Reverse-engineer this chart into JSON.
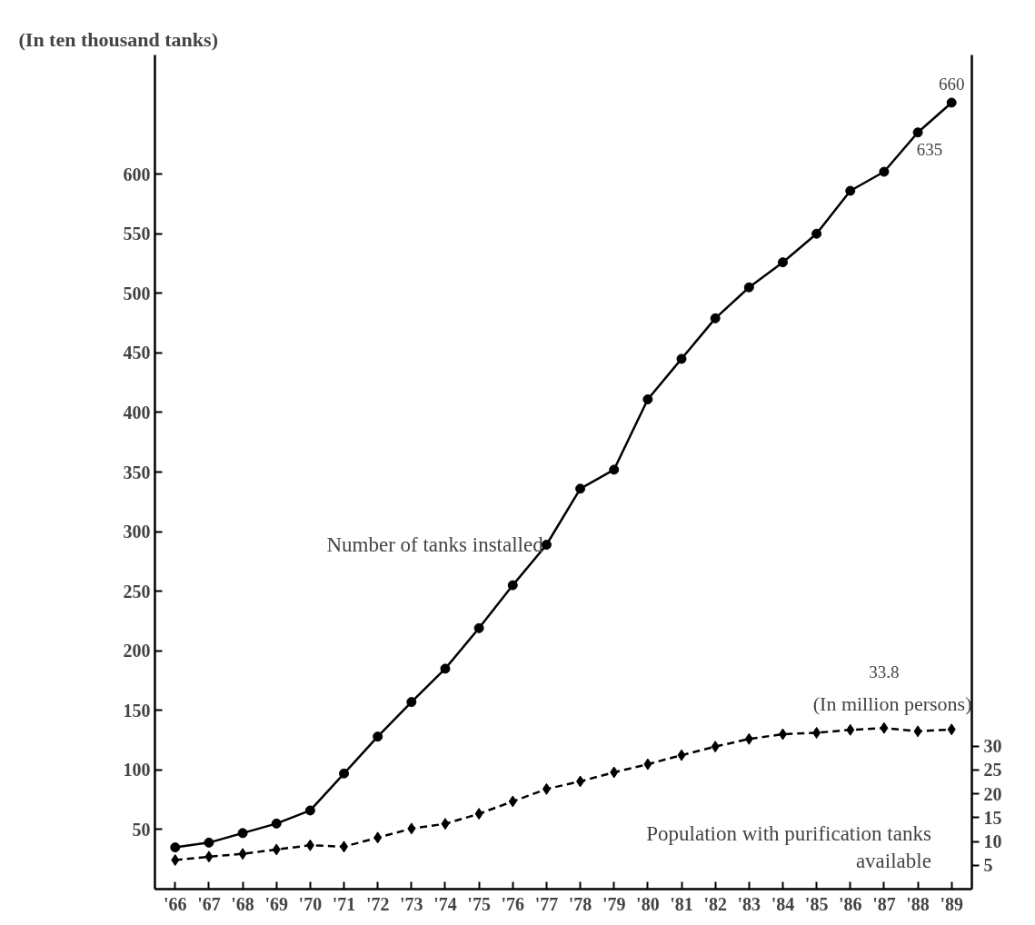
{
  "chart_data": {
    "type": "line",
    "ylabel": "(In ten thousand tanks)",
    "y2label": "(In million persons)",
    "categories": [
      "'66",
      "'67",
      "'68",
      "'69",
      "'70",
      "'71",
      "'72",
      "'73",
      "'74",
      "'75",
      "'76",
      "'77",
      "'78",
      "'79",
      "'80",
      "'81",
      "'82",
      "'83",
      "'84",
      "'85",
      "'86",
      "'87",
      "'88",
      "'89"
    ],
    "series": [
      {
        "name": "Number of tanks installed",
        "color": "#000000",
        "marker": "circle",
        "line_style": "solid",
        "values": [
          35,
          39,
          47,
          55,
          66,
          97,
          128,
          157,
          185,
          219,
          255,
          289,
          336,
          352,
          411,
          445,
          479,
          505,
          526,
          550,
          586,
          602,
          635,
          660
        ],
        "value_labels": [
          null,
          null,
          null,
          null,
          null,
          null,
          null,
          null,
          null,
          null,
          null,
          null,
          null,
          null,
          null,
          null,
          null,
          null,
          null,
          null,
          null,
          null,
          "635",
          "660"
        ]
      },
      {
        "name": "Population with purification tanks available",
        "color": "#000000",
        "marker": "diamond",
        "line_style": "dashed",
        "axis": "y2",
        "values": [
          6.1,
          6.8,
          7.4,
          8.3,
          9.2,
          8.9,
          10.8,
          12.7,
          13.7,
          15.8,
          18.4,
          21.0,
          22.6,
          24.5,
          26.2,
          28.1,
          29.9,
          31.5,
          32.5,
          32.8,
          33.4,
          33.8,
          33.1,
          33.5
        ],
        "value_labels": [
          null,
          null,
          null,
          null,
          null,
          null,
          null,
          null,
          null,
          null,
          null,
          null,
          null,
          null,
          null,
          null,
          null,
          null,
          null,
          null,
          null,
          "33.8",
          null,
          null
        ]
      }
    ],
    "ylim": [
      0,
      700
    ],
    "yticks": [
      50,
      100,
      150,
      200,
      250,
      300,
      350,
      400,
      450,
      500,
      550,
      600
    ],
    "y2lim": [
      0,
      175
    ],
    "y2ticks": [
      5,
      10,
      15,
      20,
      25,
      30
    ],
    "grid": false
  }
}
